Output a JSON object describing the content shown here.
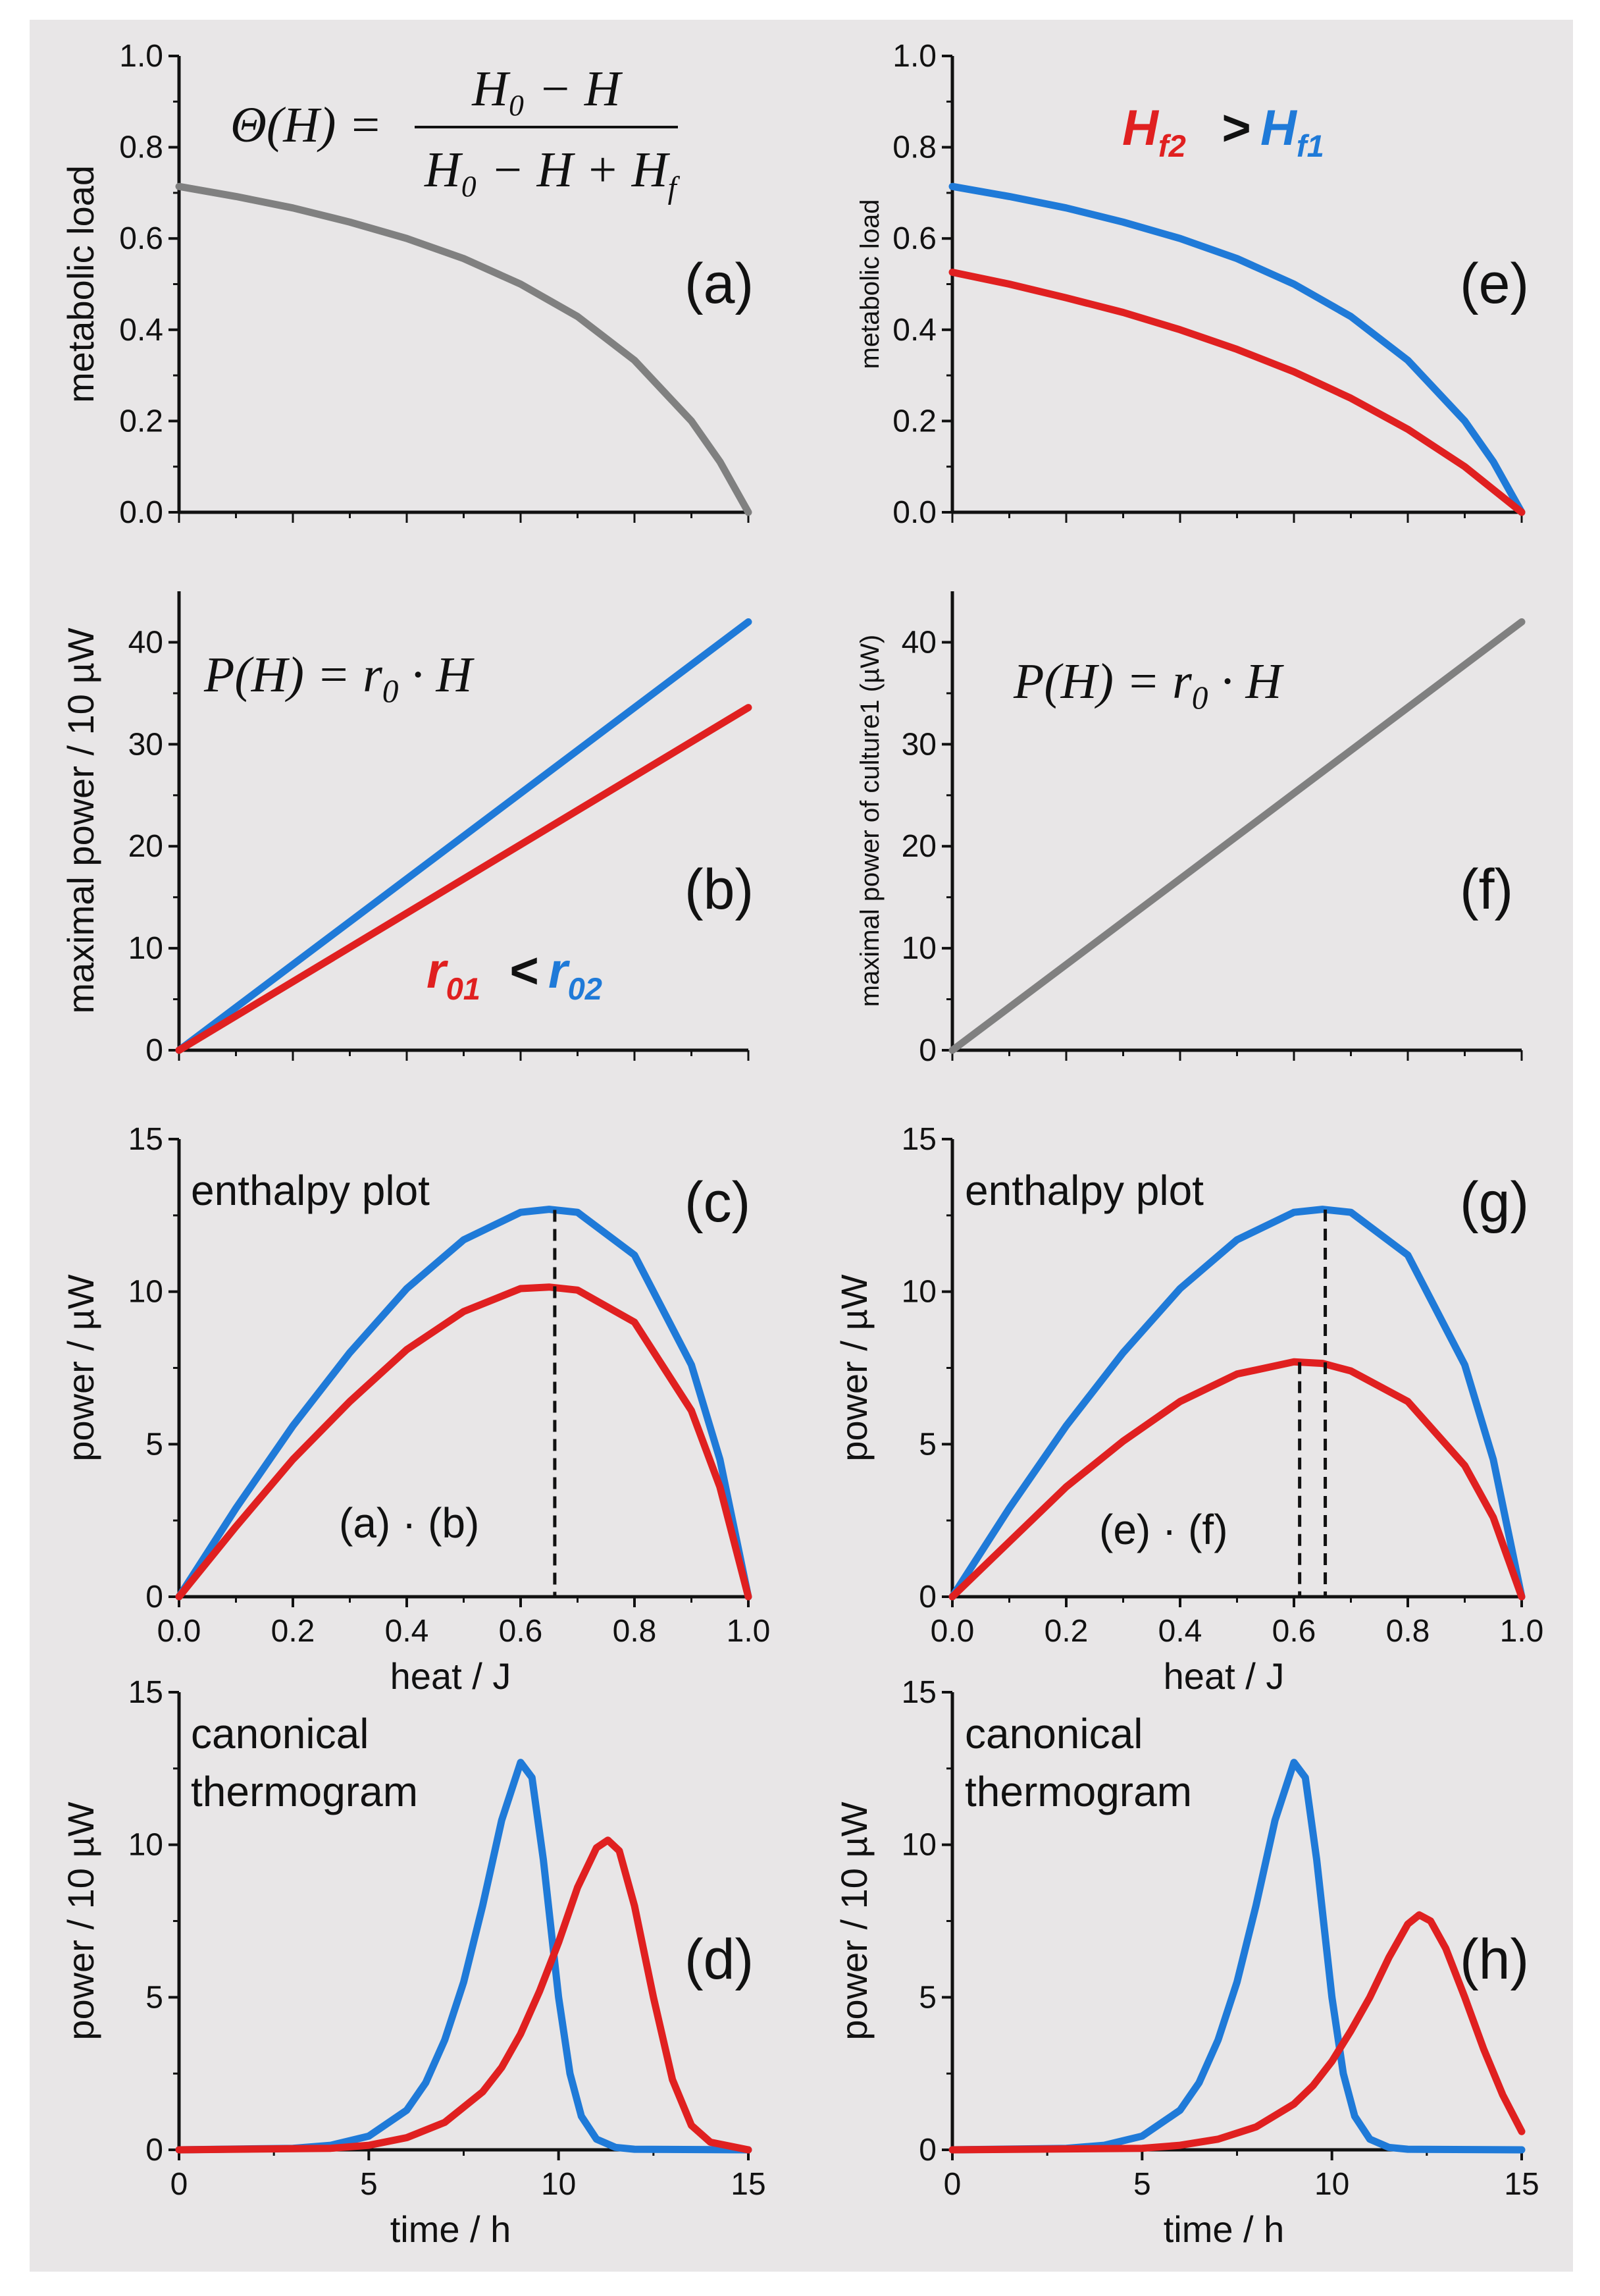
{
  "colors": {
    "background": "#e8e6e7",
    "red": "#e02020",
    "blue": "#1f7ad8",
    "gray": "#808080",
    "axis": "#111111"
  },
  "chart_data": [
    {
      "id": "a",
      "type": "line",
      "panel_label": "(a)",
      "ylabel": "metabolic load",
      "xlim": [
        0,
        1
      ],
      "ylim": [
        0,
        1
      ],
      "xticks": [],
      "yticks": [
        "0.0",
        "0.2",
        "0.4",
        "0.6",
        "0.8",
        "1.0"
      ],
      "formula": {
        "lhs": "Θ(H) =",
        "num": "H₀ − H",
        "den": "H₀ − H + H",
        "den_sub": "f"
      },
      "series": [
        {
          "color": "gray",
          "x": [
            0,
            0.1,
            0.2,
            0.3,
            0.4,
            0.5,
            0.6,
            0.7,
            0.8,
            0.9,
            0.95,
            1.0
          ],
          "y": [
            0.714,
            0.692,
            0.667,
            0.636,
            0.6,
            0.556,
            0.5,
            0.429,
            0.333,
            0.2,
            0.111,
            0
          ]
        }
      ]
    },
    {
      "id": "b",
      "type": "line",
      "panel_label": "(b)",
      "ylabel": "maximal power / 10 µW",
      "xlim": [
        0,
        1
      ],
      "ylim": [
        0,
        45
      ],
      "xticks": [],
      "yticks": [
        "0",
        "10",
        "20",
        "30",
        "40"
      ],
      "formula_text": "P(H) = r",
      "formula_sub": "0",
      "formula_tail": " · H",
      "comparison": {
        "left": "r",
        "left_sub": "01",
        "op": " < ",
        "right": "r",
        "right_sub": "02"
      },
      "series": [
        {
          "color": "blue",
          "x": [
            0,
            1
          ],
          "y": [
            0,
            42
          ]
        },
        {
          "color": "red",
          "x": [
            0,
            1
          ],
          "y": [
            0,
            33.6
          ]
        }
      ]
    },
    {
      "id": "c",
      "type": "line",
      "panel_label": "(c)",
      "title": "enthalpy plot",
      "annotation": "(a) · (b)",
      "ylabel": "power / µW",
      "xlabel": "heat / J",
      "xlim": [
        0,
        1
      ],
      "ylim": [
        0,
        15
      ],
      "xticks": [
        "0.0",
        "0.2",
        "0.4",
        "0.6",
        "0.8",
        "1.0"
      ],
      "yticks": [
        "0",
        "5",
        "10",
        "15"
      ],
      "vlines": [
        0.66
      ],
      "series": [
        {
          "color": "blue",
          "x": [
            0,
            0.1,
            0.2,
            0.3,
            0.4,
            0.5,
            0.6,
            0.65,
            0.7,
            0.8,
            0.9,
            0.95,
            1.0
          ],
          "y": [
            0,
            2.9,
            5.6,
            8.0,
            10.1,
            11.7,
            12.6,
            12.7,
            12.6,
            11.2,
            7.6,
            4.5,
            0
          ]
        },
        {
          "color": "red",
          "x": [
            0,
            0.1,
            0.2,
            0.3,
            0.4,
            0.5,
            0.6,
            0.65,
            0.7,
            0.8,
            0.9,
            0.95,
            1.0
          ],
          "y": [
            0,
            2.3,
            4.5,
            6.4,
            8.1,
            9.35,
            10.1,
            10.15,
            10.05,
            9.0,
            6.1,
            3.6,
            0
          ]
        }
      ]
    },
    {
      "id": "d",
      "type": "line",
      "panel_label": "(d)",
      "title_lines": [
        "canonical",
        "thermogram"
      ],
      "ylabel": "power / 10 µW",
      "xlabel": "time / h",
      "xlim": [
        0,
        15
      ],
      "ylim": [
        0,
        15
      ],
      "xticks": [
        "0",
        "5",
        "10",
        "15"
      ],
      "yticks": [
        "0",
        "5",
        "10",
        "15"
      ],
      "series": [
        {
          "color": "blue",
          "x": [
            0,
            3,
            4,
            5,
            6,
            6.5,
            7,
            7.5,
            8,
            8.5,
            9,
            9.3,
            9.6,
            10,
            10.3,
            10.6,
            11,
            11.5,
            12,
            15
          ],
          "y": [
            0,
            0.05,
            0.15,
            0.45,
            1.3,
            2.2,
            3.6,
            5.5,
            8.0,
            10.8,
            12.7,
            12.2,
            9.5,
            5.0,
            2.5,
            1.1,
            0.35,
            0.08,
            0.02,
            0
          ]
        },
        {
          "color": "red",
          "x": [
            0,
            4,
            5,
            6,
            7,
            8,
            8.5,
            9,
            9.5,
            10,
            10.5,
            11,
            11.3,
            11.6,
            12,
            12.5,
            13,
            13.5,
            14,
            15
          ],
          "y": [
            0,
            0.05,
            0.15,
            0.4,
            0.9,
            1.9,
            2.7,
            3.8,
            5.2,
            6.8,
            8.6,
            9.9,
            10.15,
            9.8,
            8.0,
            5.0,
            2.3,
            0.8,
            0.25,
            0
          ]
        }
      ]
    },
    {
      "id": "e",
      "type": "line",
      "panel_label": "(e)",
      "ylabel": "metabolic load",
      "xlim": [
        0,
        1
      ],
      "ylim": [
        0,
        1
      ],
      "xticks": [],
      "yticks": [
        "0.0",
        "0.2",
        "0.4",
        "0.6",
        "0.8",
        "1.0"
      ],
      "comparison": {
        "left": "H",
        "left_sub": "f2",
        "op": " > ",
        "right": "H",
        "right_sub": "f1"
      },
      "series": [
        {
          "color": "blue",
          "x": [
            0,
            0.1,
            0.2,
            0.3,
            0.4,
            0.5,
            0.6,
            0.7,
            0.8,
            0.9,
            0.95,
            1.0
          ],
          "y": [
            0.714,
            0.692,
            0.667,
            0.636,
            0.6,
            0.556,
            0.5,
            0.429,
            0.333,
            0.2,
            0.111,
            0
          ]
        },
        {
          "color": "red",
          "x": [
            0,
            0.1,
            0.2,
            0.3,
            0.4,
            0.5,
            0.6,
            0.7,
            0.8,
            0.9,
            0.95,
            1.0
          ],
          "y": [
            0.526,
            0.5,
            0.47,
            0.438,
            0.4,
            0.357,
            0.308,
            0.25,
            0.182,
            0.1,
            0.05,
            0
          ]
        }
      ]
    },
    {
      "id": "f",
      "type": "line",
      "panel_label": "(f)",
      "ylabel": "maximal power of culture1 (µW)",
      "xlim": [
        0,
        1
      ],
      "ylim": [
        0,
        45
      ],
      "xticks": [],
      "yticks": [
        "0",
        "10",
        "20",
        "30",
        "40"
      ],
      "formula_text": "P(H) = r",
      "formula_sub": "0",
      "formula_tail": " · H",
      "series": [
        {
          "color": "gray",
          "x": [
            0,
            1
          ],
          "y": [
            0,
            42
          ]
        }
      ]
    },
    {
      "id": "g",
      "type": "line",
      "panel_label": "(g)",
      "title": "enthalpy plot",
      "annotation": "(e) · (f)",
      "ylabel": "power / µW",
      "xlabel": "heat / J",
      "xlim": [
        0,
        1
      ],
      "ylim": [
        0,
        15
      ],
      "xticks": [
        "0.0",
        "0.2",
        "0.4",
        "0.6",
        "0.8",
        "1.0"
      ],
      "yticks": [
        "0",
        "5",
        "10",
        "15"
      ],
      "vlines": [
        0.61,
        0.655
      ],
      "series": [
        {
          "color": "blue",
          "x": [
            0,
            0.1,
            0.2,
            0.3,
            0.4,
            0.5,
            0.6,
            0.65,
            0.7,
            0.8,
            0.9,
            0.95,
            1.0
          ],
          "y": [
            0,
            2.9,
            5.6,
            8.0,
            10.1,
            11.7,
            12.6,
            12.7,
            12.6,
            11.2,
            7.6,
            4.5,
            0
          ]
        },
        {
          "color": "red",
          "x": [
            0,
            0.1,
            0.2,
            0.3,
            0.4,
            0.5,
            0.6,
            0.65,
            0.7,
            0.8,
            0.9,
            0.95,
            1.0
          ],
          "y": [
            0,
            1.8,
            3.6,
            5.1,
            6.4,
            7.3,
            7.7,
            7.65,
            7.4,
            6.4,
            4.3,
            2.6,
            0
          ]
        }
      ]
    },
    {
      "id": "h",
      "type": "line",
      "panel_label": "(h)",
      "title_lines": [
        "canonical",
        "thermogram"
      ],
      "ylabel": "power / 10 µW",
      "xlabel": "time / h",
      "xlim": [
        0,
        15
      ],
      "ylim": [
        0,
        15
      ],
      "xticks": [
        "0",
        "5",
        "10",
        "15"
      ],
      "yticks": [
        "0",
        "5",
        "10",
        "15"
      ],
      "series": [
        {
          "color": "blue",
          "x": [
            0,
            3,
            4,
            5,
            6,
            6.5,
            7,
            7.5,
            8,
            8.5,
            9,
            9.3,
            9.6,
            10,
            10.3,
            10.6,
            11,
            11.5,
            12,
            15
          ],
          "y": [
            0,
            0.05,
            0.15,
            0.45,
            1.3,
            2.2,
            3.6,
            5.5,
            8.0,
            10.8,
            12.7,
            12.2,
            9.5,
            5.0,
            2.5,
            1.1,
            0.35,
            0.08,
            0.02,
            0
          ]
        },
        {
          "color": "red",
          "x": [
            0,
            5,
            6,
            7,
            8,
            9,
            9.5,
            10,
            10.5,
            11,
            11.5,
            12,
            12.3,
            12.6,
            13,
            13.5,
            14,
            14.5,
            15
          ],
          "y": [
            0,
            0.05,
            0.15,
            0.35,
            0.75,
            1.5,
            2.1,
            2.9,
            3.9,
            5.0,
            6.3,
            7.4,
            7.7,
            7.5,
            6.6,
            5.0,
            3.3,
            1.8,
            0.6
          ]
        }
      ]
    }
  ]
}
